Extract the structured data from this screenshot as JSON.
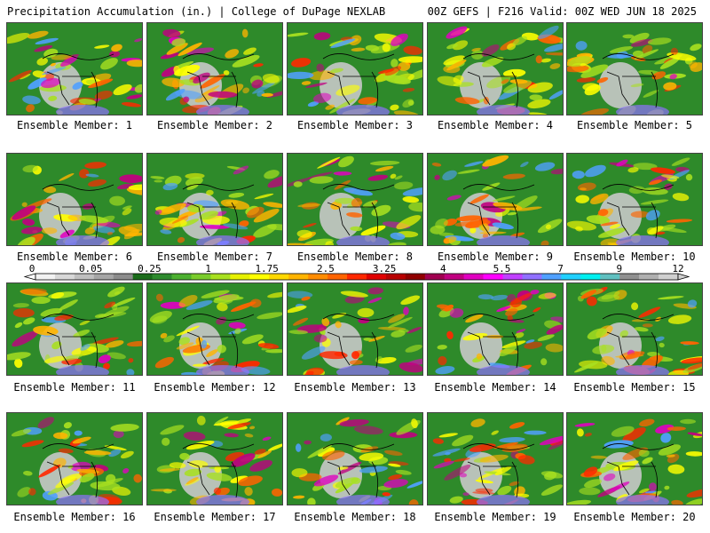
{
  "header": {
    "left": "Precipitation Accumulation (in.) | College of DuPage NEXLAB",
    "right": "00Z GEFS | F216 Valid: 00Z WED JUN 18 2025"
  },
  "panel_label_prefix": "Ensemble Member: ",
  "members": [
    "Ensemble Member: 1",
    "Ensemble Member: 2",
    "Ensemble Member: 3",
    "Ensemble Member: 4",
    "Ensemble Member: 5",
    "Ensemble Member: 6",
    "Ensemble Member: 7",
    "Ensemble Member: 8",
    "Ensemble Member: 9",
    "Ensemble Member: 10",
    "Ensemble Member: 11",
    "Ensemble Member: 12",
    "Ensemble Member: 13",
    "Ensemble Member: 14",
    "Ensemble Member: 15",
    "Ensemble Member: 16",
    "Ensemble Member: 17",
    "Ensemble Member: 18",
    "Ensemble Member: 19",
    "Ensemble Member: 20"
  ],
  "colorbar": {
    "tick_labels": [
      "0",
      "0.05",
      "0.25",
      "1",
      "1.75",
      "2.5",
      "3.25",
      "4",
      "5.5",
      "7",
      "9",
      "12"
    ],
    "colors": [
      "#f2f2f2",
      "#d8d8d8",
      "#bfbfbf",
      "#a6a6a6",
      "#8c8c8c",
      "#1a6b1a",
      "#2e8b2e",
      "#4cb030",
      "#7acc2c",
      "#a8e020",
      "#e6f000",
      "#ffff00",
      "#ffd800",
      "#ffb400",
      "#ff8c00",
      "#ff6400",
      "#ff2800",
      "#e00000",
      "#b80000",
      "#900000",
      "#a00050",
      "#c00080",
      "#e000c0",
      "#ff00ff",
      "#c040ff",
      "#9070ff",
      "#50a0ff",
      "#20d0ff",
      "#00f0f0",
      "#60c0c0",
      "#909090",
      "#b0b0b0",
      "#d0d0d0"
    ]
  }
}
